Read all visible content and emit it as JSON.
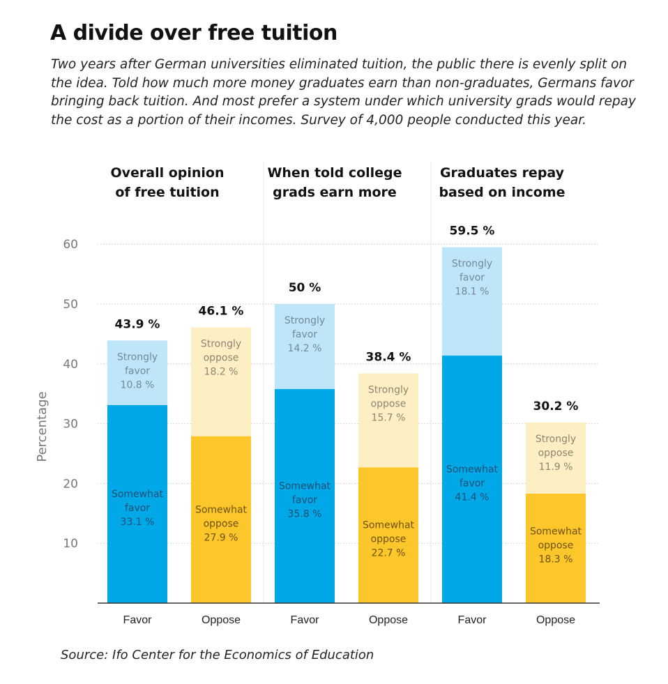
{
  "title": "A divide over free tuition",
  "subtitle": "Two years after German universities eliminated tuition, the public there is evenly split on the idea. Told how much more money graduates earn than non-graduates, Germans favor bringing back tuition. And most prefer a system under which university grads would repay the cost as a portion of their incomes. Survey of 4,000 people conducted this year.",
  "source": "Source: Ifo Center for the Economics of Education",
  "colors": {
    "somewhat_favor": "#00a8e8",
    "strongly_favor": "#bfe6f8",
    "somewhat_oppose": "#fdc62a",
    "strongly_oppose": "#fdeec4",
    "grid": "#d9d9d9",
    "divider": "#e3e3e3",
    "axis": "#333333"
  },
  "chart_data": {
    "type": "bar",
    "stacked": true,
    "ylabel": "Percentage",
    "ylim": [
      0,
      60
    ],
    "yticks": [
      10,
      20,
      30,
      40,
      50,
      60
    ],
    "grid": true,
    "groups": [
      {
        "title": [
          "Overall opinion",
          "of free tuition"
        ],
        "bars": [
          {
            "label": "Favor",
            "total": "43.9 %",
            "segments": [
              {
                "name": [
                  "Somewhat",
                  "favor"
                ],
                "value": 33.1,
                "text": "33.1 %",
                "kind": "somewhat_favor"
              },
              {
                "name": [
                  "Strongly",
                  "favor"
                ],
                "value": 10.8,
                "text": "10.8 %",
                "kind": "strongly_favor"
              }
            ]
          },
          {
            "label": "Oppose",
            "total": "46.1 %",
            "segments": [
              {
                "name": [
                  "Somewhat",
                  "oppose"
                ],
                "value": 27.9,
                "text": "27.9 %",
                "kind": "somewhat_oppose"
              },
              {
                "name": [
                  "Strongly",
                  "oppose"
                ],
                "value": 18.2,
                "text": "18.2 %",
                "kind": "strongly_oppose"
              }
            ]
          }
        ]
      },
      {
        "title": [
          "When told college",
          "grads earn more"
        ],
        "bars": [
          {
            "label": "Favor",
            "total": "50 %",
            "segments": [
              {
                "name": [
                  "Somewhat",
                  "favor"
                ],
                "value": 35.8,
                "text": "35.8 %",
                "kind": "somewhat_favor"
              },
              {
                "name": [
                  "Strongly",
                  "favor"
                ],
                "value": 14.2,
                "text": "14.2 %",
                "kind": "strongly_favor"
              }
            ]
          },
          {
            "label": "Oppose",
            "total": "38.4 %",
            "segments": [
              {
                "name": [
                  "Somewhat",
                  "oppose"
                ],
                "value": 22.7,
                "text": "22.7 %",
                "kind": "somewhat_oppose"
              },
              {
                "name": [
                  "Strongly",
                  "oppose"
                ],
                "value": 15.7,
                "text": "15.7 %",
                "kind": "strongly_oppose"
              }
            ]
          }
        ]
      },
      {
        "title": [
          "Graduates repay",
          "based on income"
        ],
        "bars": [
          {
            "label": "Favor",
            "total": "59.5 %",
            "segments": [
              {
                "name": [
                  "Somewhat",
                  "favor"
                ],
                "value": 41.4,
                "text": "41.4 %",
                "kind": "somewhat_favor"
              },
              {
                "name": [
                  "Strongly",
                  "favor"
                ],
                "value": 18.1,
                "text": "18.1 %",
                "kind": "strongly_favor"
              }
            ]
          },
          {
            "label": "Oppose",
            "total": "30.2 %",
            "segments": [
              {
                "name": [
                  "Somewhat",
                  "oppose"
                ],
                "value": 18.3,
                "text": "18.3 %",
                "kind": "somewhat_oppose"
              },
              {
                "name": [
                  "Strongly",
                  "oppose"
                ],
                "value": 11.9,
                "text": "11.9 %",
                "kind": "strongly_oppose"
              }
            ]
          }
        ]
      }
    ]
  }
}
